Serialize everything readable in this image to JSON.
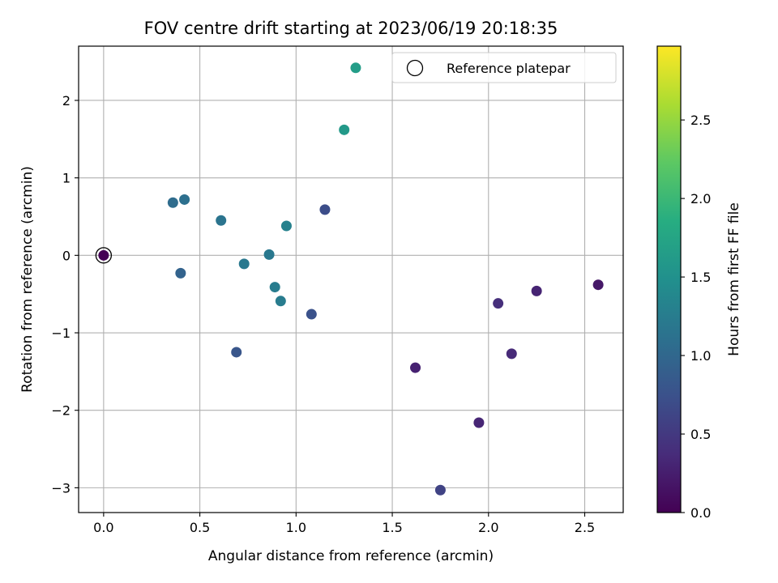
{
  "chart_data": {
    "type": "scatter",
    "title": "FOV centre drift starting at 2023/06/19 20:18:35",
    "xlabel": "Angular distance from reference (arcmin)",
    "ylabel": "Rotation from reference (arcmin)",
    "xlim": [
      -0.13,
      2.7
    ],
    "ylim": [
      -3.32,
      2.7
    ],
    "xticks": [
      0.0,
      0.5,
      1.0,
      1.5,
      2.0,
      2.5
    ],
    "xtick_labels": [
      "0.0",
      "0.5",
      "1.0",
      "1.5",
      "2.0",
      "2.5"
    ],
    "yticks": [
      -3,
      -2,
      -1,
      0,
      1,
      2
    ],
    "ytick_labels": [
      "−3",
      "−2",
      "−1",
      "0",
      "1",
      "2"
    ],
    "grid": true,
    "legend": {
      "placement": "top-right",
      "entries": [
        {
          "label": "Reference platepar",
          "marker": "hollow-circle",
          "color": "#000000"
        }
      ]
    },
    "reference_point": {
      "x": 0.0,
      "y": 0.0
    },
    "colorbar": {
      "label": "Hours from first FF file",
      "min": 0.0,
      "max": 2.97,
      "ticks": [
        0.0,
        0.5,
        1.0,
        1.5,
        2.0,
        2.5
      ],
      "tick_labels": [
        "0.0",
        "0.5",
        "1.0",
        "1.5",
        "2.0",
        "2.5"
      ],
      "colormap": "viridis"
    },
    "points": [
      {
        "x": 0.0,
        "y": 0.0,
        "hours": 0.0
      },
      {
        "x": 2.57,
        "y": -0.38,
        "hours": 0.2
      },
      {
        "x": 2.25,
        "y": -0.46,
        "hours": 0.3
      },
      {
        "x": 2.12,
        "y": -1.27,
        "hours": 0.35
      },
      {
        "x": 2.05,
        "y": -0.62,
        "hours": 0.4
      },
      {
        "x": 1.95,
        "y": -2.16,
        "hours": 0.32
      },
      {
        "x": 1.62,
        "y": -1.45,
        "hours": 0.28
      },
      {
        "x": 1.75,
        "y": -3.03,
        "hours": 0.6
      },
      {
        "x": 1.15,
        "y": 0.59,
        "hours": 0.7
      },
      {
        "x": 1.08,
        "y": -0.76,
        "hours": 0.75
      },
      {
        "x": 0.69,
        "y": -1.25,
        "hours": 0.8
      },
      {
        "x": 0.4,
        "y": -0.23,
        "hours": 0.95
      },
      {
        "x": 0.36,
        "y": 0.68,
        "hours": 1.05
      },
      {
        "x": 0.42,
        "y": 0.72,
        "hours": 1.1
      },
      {
        "x": 0.61,
        "y": 0.45,
        "hours": 1.15
      },
      {
        "x": 0.73,
        "y": -0.11,
        "hours": 1.2
      },
      {
        "x": 0.86,
        "y": 0.01,
        "hours": 1.2
      },
      {
        "x": 0.89,
        "y": -0.41,
        "hours": 1.25
      },
      {
        "x": 0.92,
        "y": -0.59,
        "hours": 1.25
      },
      {
        "x": 0.95,
        "y": 0.38,
        "hours": 1.3
      },
      {
        "x": 1.25,
        "y": 1.62,
        "hours": 1.6
      },
      {
        "x": 1.31,
        "y": 2.42,
        "hours": 1.65
      }
    ]
  }
}
